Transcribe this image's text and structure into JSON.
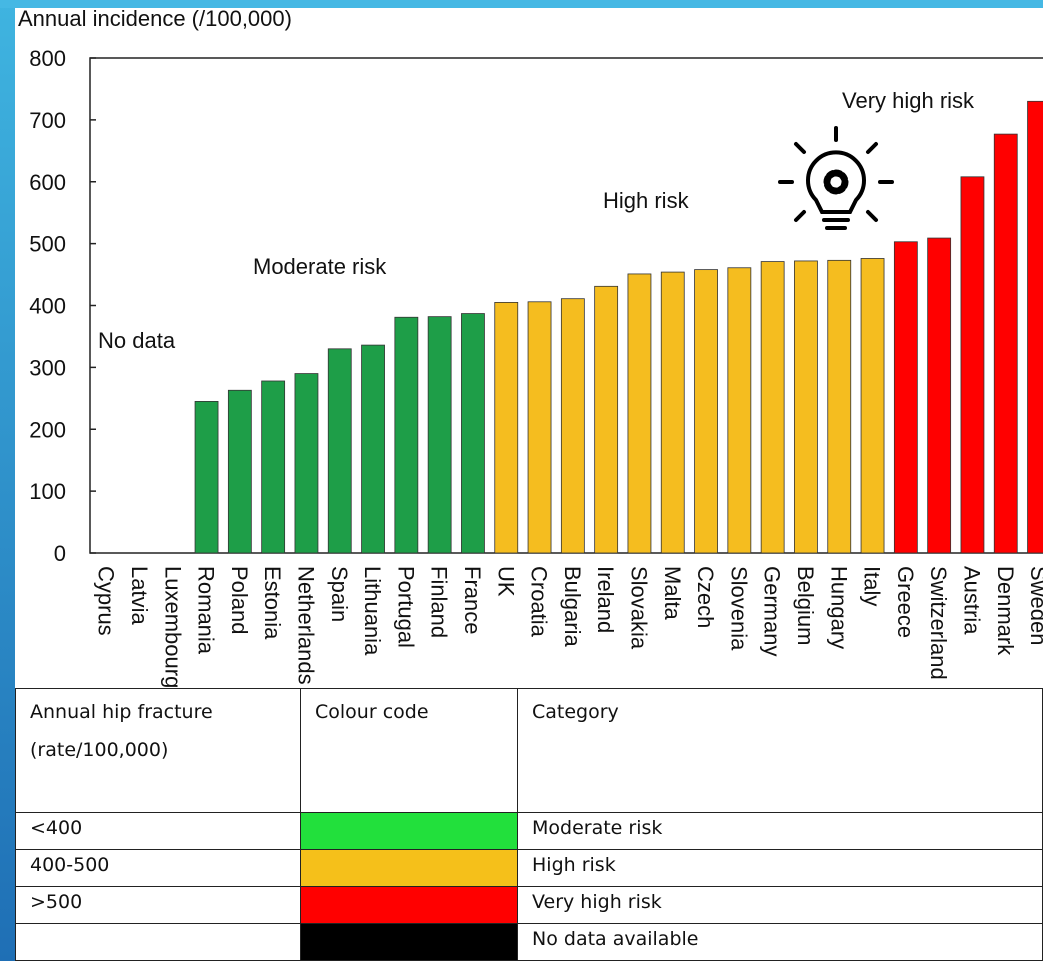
{
  "chart_data": {
    "type": "bar",
    "y_label": "Annual incidence (/100,000)",
    "categories": [
      "Cyprus",
      "Latvia",
      "Luxembourg",
      "Romania",
      "Poland",
      "Estonia",
      "Netherlands",
      "Spain",
      "Lithuania",
      "Portugal",
      "Finland",
      "France",
      "UK",
      "Croatia",
      "Bulgaria",
      "Ireland",
      "Slovakia",
      "Malta",
      "Czech",
      "Slovenia",
      "Germany",
      "Belgium",
      "Hungary",
      "Italy",
      "Greece",
      "Switzerland",
      "Austria",
      "Denmark",
      "Sweden"
    ],
    "values": [
      null,
      null,
      null,
      245,
      263,
      278,
      290,
      330,
      336,
      381,
      382,
      387,
      405,
      406,
      411,
      431,
      451,
      454,
      458,
      461,
      471,
      472,
      473,
      476,
      503,
      509,
      608,
      677,
      730
    ],
    "colors": [
      null,
      null,
      null,
      "#1e9e48",
      "#1e9e48",
      "#1e9e48",
      "#1e9e48",
      "#1e9e48",
      "#1e9e48",
      "#1e9e48",
      "#1e9e48",
      "#1e9e48",
      "#f5bd1f",
      "#f5bd1f",
      "#f5bd1f",
      "#f5bd1f",
      "#f5bd1f",
      "#f5bd1f",
      "#f5bd1f",
      "#f5bd1f",
      "#f5bd1f",
      "#f5bd1f",
      "#f5bd1f",
      "#f5bd1f",
      "#ff0000",
      "#ff0000",
      "#ff0000",
      "#ff0000",
      "#ff0000"
    ],
    "ylim": [
      0,
      800
    ],
    "yticks": [
      0,
      100,
      200,
      300,
      400,
      500,
      600,
      700,
      800
    ],
    "annotations": [
      "No data",
      "Moderate risk",
      "High risk",
      "Very high risk"
    ]
  },
  "table": {
    "header": [
      [
        "Annual hip fracture",
        "(rate/100,000)"
      ],
      [
        "Colour code"
      ],
      [
        "Category"
      ]
    ],
    "rows": [
      {
        "rate": "<400",
        "color": "#22e03c",
        "category": "Moderate risk"
      },
      {
        "rate": "400-500",
        "color": "#f5c01a",
        "category": "High risk"
      },
      {
        "rate": ">500",
        "color": "#ff0000",
        "category": "Very high risk"
      },
      {
        "rate": null,
        "color": "#000000",
        "category": "No data available"
      }
    ]
  }
}
